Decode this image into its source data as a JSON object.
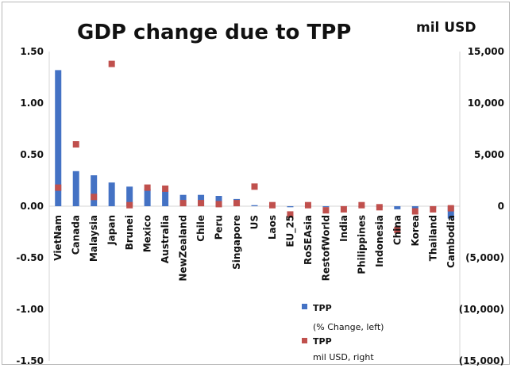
{
  "chart_data": {
    "type": "bar",
    "title": "GDP change due to TPP",
    "unit_label": "mil USD",
    "categories": [
      "VietNam",
      "Canada",
      "Malaysia",
      "Japan",
      "Brunei",
      "Mexico",
      "Australia",
      "NewZealand",
      "Chile",
      "Peru",
      "Singapore",
      "US",
      "Laos",
      "EU_25",
      "RoSEAsia",
      "RestofWorld",
      "India",
      "Philippines",
      "Indonesia",
      "China",
      "Korea",
      "Thailand",
      "Cambodia"
    ],
    "series": [
      {
        "name": "TPP",
        "legend_note": "(% Change, left)",
        "kind": "bar",
        "axis": "left",
        "color": "#4472c4",
        "values": [
          1.32,
          0.34,
          0.3,
          0.23,
          0.19,
          0.17,
          0.15,
          0.11,
          0.11,
          0.1,
          0.07,
          0.01,
          0.0,
          -0.01,
          0.0,
          -0.01,
          0.0,
          0.0,
          -0.01,
          -0.03,
          -0.02,
          -0.02,
          -0.12
        ]
      },
      {
        "name": "TPP",
        "legend_note": "mil USD, right",
        "kind": "marker",
        "axis": "right",
        "color": "#c0504d",
        "values": [
          1800,
          6000,
          900,
          13800,
          100,
          1800,
          1700,
          300,
          300,
          200,
          300,
          1900,
          100,
          -800,
          100,
          -400,
          -300,
          100,
          -100,
          -2300,
          -500,
          -300,
          -200
        ]
      }
    ],
    "y_left": {
      "min": -1.5,
      "max": 1.5,
      "ticks": [
        1.5,
        1.0,
        0.5,
        0.0,
        -0.5,
        -1.0,
        -1.5
      ],
      "tick_labels": [
        "1.50",
        "1.00",
        "0.50",
        "0.00",
        "-0.50",
        "-1.00",
        "-1.50"
      ]
    },
    "y_right": {
      "min": -15000,
      "max": 15000,
      "ticks": [
        15000,
        10000,
        5000,
        0,
        -5000,
        -10000,
        -15000
      ],
      "tick_labels": [
        "15,000",
        "10,000",
        "5,000",
        "0",
        "(5,000)",
        "(10,000)",
        "(15,000)"
      ],
      "negative_color": "#ff0000"
    },
    "grid": false,
    "legend_position": "bottom-center"
  }
}
